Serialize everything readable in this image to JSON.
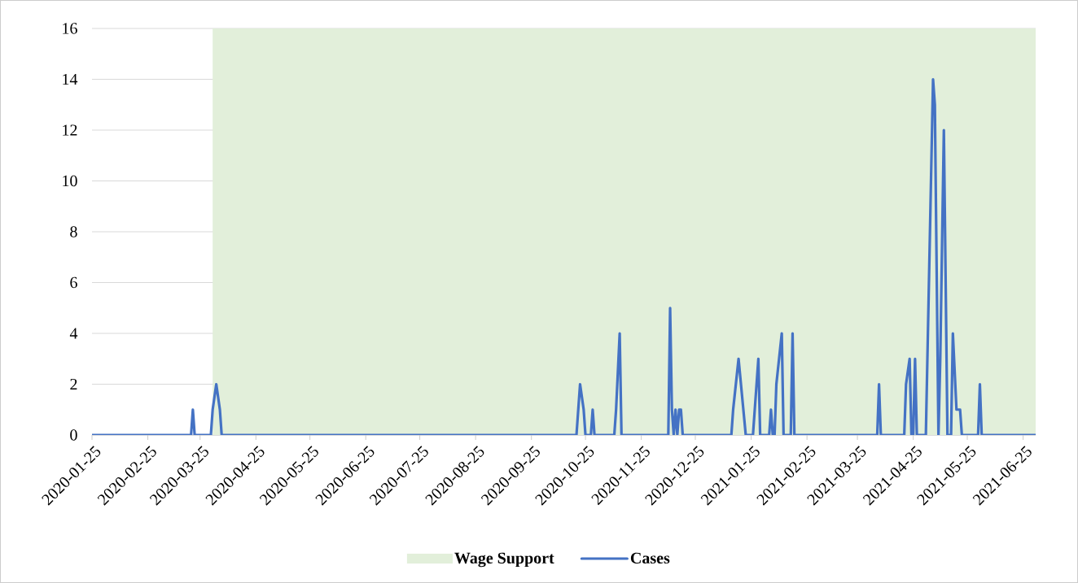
{
  "chart_data": {
    "type": "line",
    "xlim": [
      "2020-01-25",
      "2021-07-02"
    ],
    "xticks": [
      "2020-01-25",
      "2020-02-25",
      "2020-03-25",
      "2020-04-25",
      "2020-05-25",
      "2020-06-25",
      "2020-07-25",
      "2020-08-25",
      "2020-09-25",
      "2020-10-25",
      "2020-11-25",
      "2020-12-25",
      "2021-01-25",
      "2021-02-25",
      "2021-03-25",
      "2021-04-25",
      "2021-05-25",
      "2021-06-25"
    ],
    "ylim": [
      0,
      16
    ],
    "yticks": [
      0,
      2,
      4,
      6,
      8,
      10,
      12,
      14,
      16
    ],
    "grid": "y",
    "legend": "bottom",
    "line_style": "solid",
    "bands": [
      {
        "axis": "x",
        "from": "2020-04-01",
        "to": "2021-07-02",
        "label": "Wage Support",
        "color": "#e2efda"
      }
    ],
    "series": [
      {
        "name": "Cases",
        "color": "#4472c4",
        "x": [
          "2020-01-25",
          "2020-03-20",
          "2020-03-21",
          "2020-03-22",
          "2020-03-31",
          "2020-04-01",
          "2020-04-03",
          "2020-04-05",
          "2020-04-06",
          "2020-10-20",
          "2020-10-22",
          "2020-10-24",
          "2020-10-25",
          "2020-10-28",
          "2020-10-29",
          "2020-10-30",
          "2020-11-10",
          "2020-11-11",
          "2020-11-13",
          "2020-11-14",
          "2020-12-10",
          "2020-12-11",
          "2020-12-12",
          "2020-12-13",
          "2020-12-14",
          "2020-12-15",
          "2020-12-16",
          "2020-12-17",
          "2020-12-18",
          "2021-01-14",
          "2021-01-15",
          "2021-01-18",
          "2021-01-22",
          "2021-01-26",
          "2021-01-27",
          "2021-01-29",
          "2021-01-30",
          "2021-02-04",
          "2021-02-05",
          "2021-02-06",
          "2021-02-07",
          "2021-02-08",
          "2021-02-11",
          "2021-02-12",
          "2021-02-16",
          "2021-02-17",
          "2021-02-18",
          "2021-04-05",
          "2021-04-06",
          "2021-04-07",
          "2021-04-20",
          "2021-04-21",
          "2021-04-23",
          "2021-04-24",
          "2021-04-25",
          "2021-04-26",
          "2021-04-27",
          "2021-05-02",
          "2021-05-06",
          "2021-05-07",
          "2021-05-09",
          "2021-05-10",
          "2021-05-12",
          "2021-05-14",
          "2021-05-16",
          "2021-05-17",
          "2021-05-19",
          "2021-05-21",
          "2021-05-22",
          "2021-05-31",
          "2021-06-01",
          "2021-06-02",
          "2021-07-02"
        ],
        "values": [
          0,
          0,
          1,
          0,
          0,
          1,
          2,
          1,
          0,
          0,
          2,
          1,
          0,
          0,
          1,
          0,
          0,
          1,
          4,
          0,
          0,
          5,
          1,
          0,
          1,
          0,
          1,
          1,
          0,
          0,
          1,
          3,
          0,
          0,
          1,
          3,
          0,
          0,
          1,
          0,
          0,
          2,
          4,
          0,
          0,
          4,
          0,
          0,
          2,
          0,
          0,
          2,
          3,
          0,
          0,
          3,
          0,
          0,
          14,
          13,
          0,
          3,
          12,
          0,
          0,
          4,
          1,
          1,
          0,
          0,
          2,
          0,
          0
        ]
      }
    ]
  }
}
